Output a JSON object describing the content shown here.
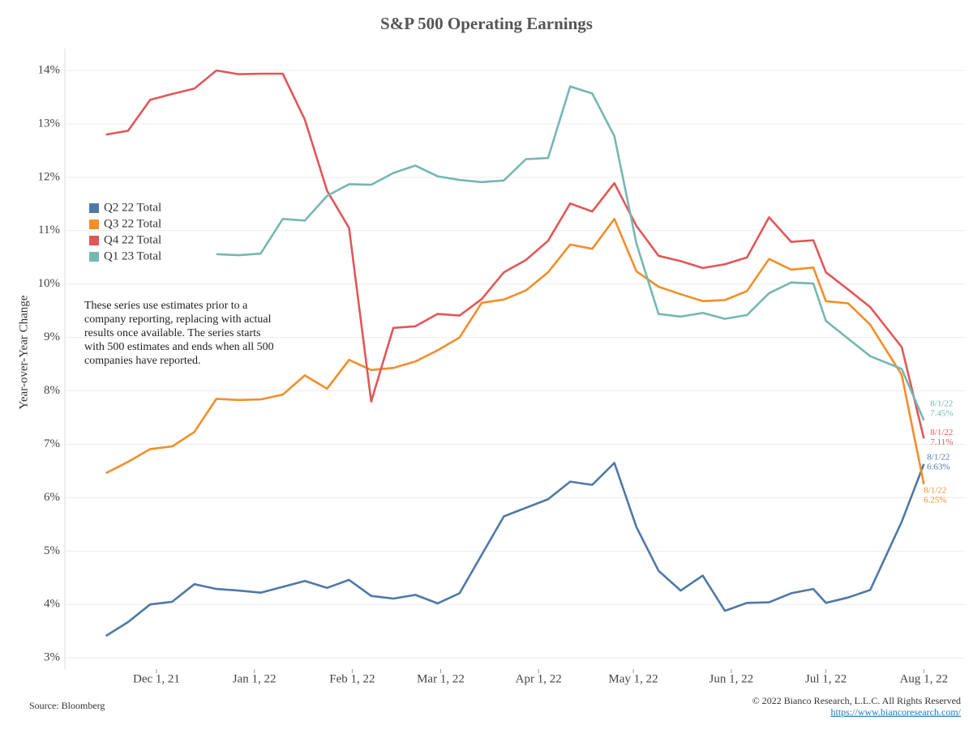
{
  "chart_data": {
    "type": "line",
    "title": "S&P 500 Operating Earnings",
    "y_label": "Year-over-Year Change",
    "note": [
      "These series use estimates prior to a",
      "company reporting, replacing with actual",
      "results once available. The series starts",
      "with 500 estimates and ends when all 500",
      "companies have reported."
    ],
    "source": "Source: Bloomberg",
    "copyright": "© 2022 Bianco Research, L.L.C. All Rights Reserved",
    "url": "https://www.biancoresearch.com/",
    "legend_position": "upper left",
    "grid": true,
    "end_date_label": "8/1/22",
    "x": [
      "2021-11-15",
      "2021-11-22",
      "2021-11-29",
      "2021-12-06",
      "2021-12-13",
      "2021-12-20",
      "2021-12-27",
      "2022-01-03",
      "2022-01-10",
      "2022-01-17",
      "2022-01-24",
      "2022-01-31",
      "2022-02-07",
      "2022-02-14",
      "2022-02-21",
      "2022-02-28",
      "2022-03-07",
      "2022-03-14",
      "2022-03-21",
      "2022-03-28",
      "2022-04-04",
      "2022-04-11",
      "2022-04-18",
      "2022-04-25",
      "2022-05-02",
      "2022-05-09",
      "2022-05-16",
      "2022-05-23",
      "2022-05-30",
      "2022-06-06",
      "2022-06-13",
      "2022-06-20",
      "2022-06-27",
      "2022-07-01",
      "2022-07-08",
      "2022-07-15",
      "2022-07-25",
      "2022-08-01"
    ],
    "xlim": [
      "2021-11-02",
      "2022-08-14"
    ],
    "xticks": [
      {
        "value": "2021-12-01",
        "label": "Dec 1, 21"
      },
      {
        "value": "2022-01-01",
        "label": "Jan 1, 22"
      },
      {
        "value": "2022-02-01",
        "label": "Feb 1, 22"
      },
      {
        "value": "2022-03-01",
        "label": "Mar 1, 22"
      },
      {
        "value": "2022-04-01",
        "label": "Apr 1, 22"
      },
      {
        "value": "2022-05-01",
        "label": "May 1, 22"
      },
      {
        "value": "2022-06-01",
        "label": "Jun 1, 22"
      },
      {
        "value": "2022-07-01",
        "label": "Jul 1, 22"
      },
      {
        "value": "2022-08-01",
        "label": "Aug 1, 22"
      }
    ],
    "ylim": [
      2.79,
      14.41
    ],
    "yticks": [
      {
        "value": 3,
        "label": "3%"
      },
      {
        "value": 4,
        "label": "4%"
      },
      {
        "value": 5,
        "label": "5%"
      },
      {
        "value": 6,
        "label": "6%"
      },
      {
        "value": 7,
        "label": "7%"
      },
      {
        "value": 8,
        "label": "8%"
      },
      {
        "value": 9,
        "label": "9%"
      },
      {
        "value": 10,
        "label": "10%"
      },
      {
        "value": 11,
        "label": "11%"
      },
      {
        "value": 12,
        "label": "12%"
      },
      {
        "value": 13,
        "label": "13%"
      },
      {
        "value": 14,
        "label": "14%"
      }
    ],
    "series": [
      {
        "name": "Q2 22 Total",
        "color": "#4e79a7",
        "values": [
          3.41,
          3.67,
          4.0,
          4.05,
          4.38,
          4.29,
          4.26,
          4.22,
          4.33,
          4.44,
          4.31,
          4.46,
          4.16,
          4.11,
          4.18,
          4.02,
          4.21,
          4.93,
          5.65,
          5.81,
          5.97,
          6.3,
          6.24,
          6.65,
          5.45,
          4.63,
          4.26,
          4.54,
          3.88,
          4.03,
          4.04,
          4.21,
          4.29,
          4.03,
          4.13,
          4.27,
          5.55,
          6.63
        ],
        "value_labels": [
          null,
          null,
          null,
          null,
          null,
          null,
          null,
          null,
          null,
          null,
          null,
          null,
          null,
          null,
          null,
          null,
          null,
          null,
          null,
          null,
          null,
          null,
          null,
          null,
          null,
          null,
          null,
          null,
          null,
          null,
          null,
          null,
          null,
          null,
          null,
          null,
          null,
          "6.63%"
        ]
      },
      {
        "name": "Q3 22 Total",
        "color": "#f28e2b",
        "values": [
          6.46,
          6.67,
          6.91,
          6.96,
          7.23,
          7.85,
          7.83,
          7.84,
          7.93,
          8.29,
          8.04,
          8.58,
          8.39,
          8.43,
          8.55,
          8.76,
          9.0,
          9.65,
          9.71,
          9.88,
          10.22,
          10.74,
          10.66,
          11.22,
          10.24,
          9.95,
          9.81,
          9.68,
          9.7,
          9.87,
          10.47,
          10.27,
          10.31,
          9.68,
          9.64,
          9.24,
          8.3,
          6.25
        ],
        "value_labels": [
          null,
          null,
          null,
          null,
          null,
          null,
          null,
          null,
          null,
          null,
          null,
          null,
          null,
          null,
          null,
          null,
          null,
          null,
          null,
          null,
          null,
          null,
          null,
          null,
          null,
          null,
          null,
          null,
          null,
          null,
          null,
          null,
          null,
          null,
          null,
          null,
          null,
          "6.25%"
        ]
      },
      {
        "name": "Q4 22 Total",
        "color": "#e15759",
        "values": [
          12.8,
          12.87,
          13.45,
          13.56,
          13.66,
          14.0,
          13.93,
          13.94,
          13.94,
          13.08,
          11.75,
          11.05,
          7.8,
          9.18,
          9.21,
          9.44,
          9.41,
          9.72,
          10.22,
          10.45,
          10.81,
          11.51,
          11.36,
          11.89,
          11.09,
          10.53,
          10.43,
          10.3,
          10.37,
          10.5,
          11.25,
          10.79,
          10.82,
          10.22,
          9.9,
          9.57,
          8.82,
          7.11
        ],
        "value_labels": [
          null,
          null,
          null,
          null,
          null,
          null,
          null,
          null,
          null,
          null,
          null,
          null,
          null,
          null,
          null,
          null,
          null,
          null,
          null,
          null,
          null,
          null,
          null,
          null,
          null,
          null,
          null,
          null,
          null,
          null,
          null,
          null,
          null,
          null,
          null,
          null,
          null,
          "7.11%"
        ]
      },
      {
        "name": "Q1 23 Total",
        "color": "#76b7b2",
        "values": [
          null,
          null,
          null,
          null,
          null,
          10.56,
          10.54,
          10.57,
          11.22,
          11.19,
          11.65,
          11.87,
          11.86,
          12.08,
          12.22,
          12.02,
          11.95,
          11.91,
          11.94,
          12.34,
          12.36,
          13.7,
          13.57,
          12.77,
          10.76,
          9.44,
          9.39,
          9.46,
          9.35,
          9.42,
          9.83,
          10.03,
          10.01,
          9.31,
          8.98,
          8.65,
          8.41,
          7.45
        ],
        "value_labels": [
          null,
          null,
          null,
          null,
          null,
          null,
          null,
          null,
          null,
          null,
          null,
          null,
          null,
          null,
          null,
          null,
          null,
          null,
          null,
          null,
          null,
          null,
          null,
          null,
          null,
          null,
          null,
          null,
          null,
          null,
          null,
          null,
          null,
          null,
          null,
          null,
          null,
          "7.45%"
        ]
      }
    ]
  }
}
